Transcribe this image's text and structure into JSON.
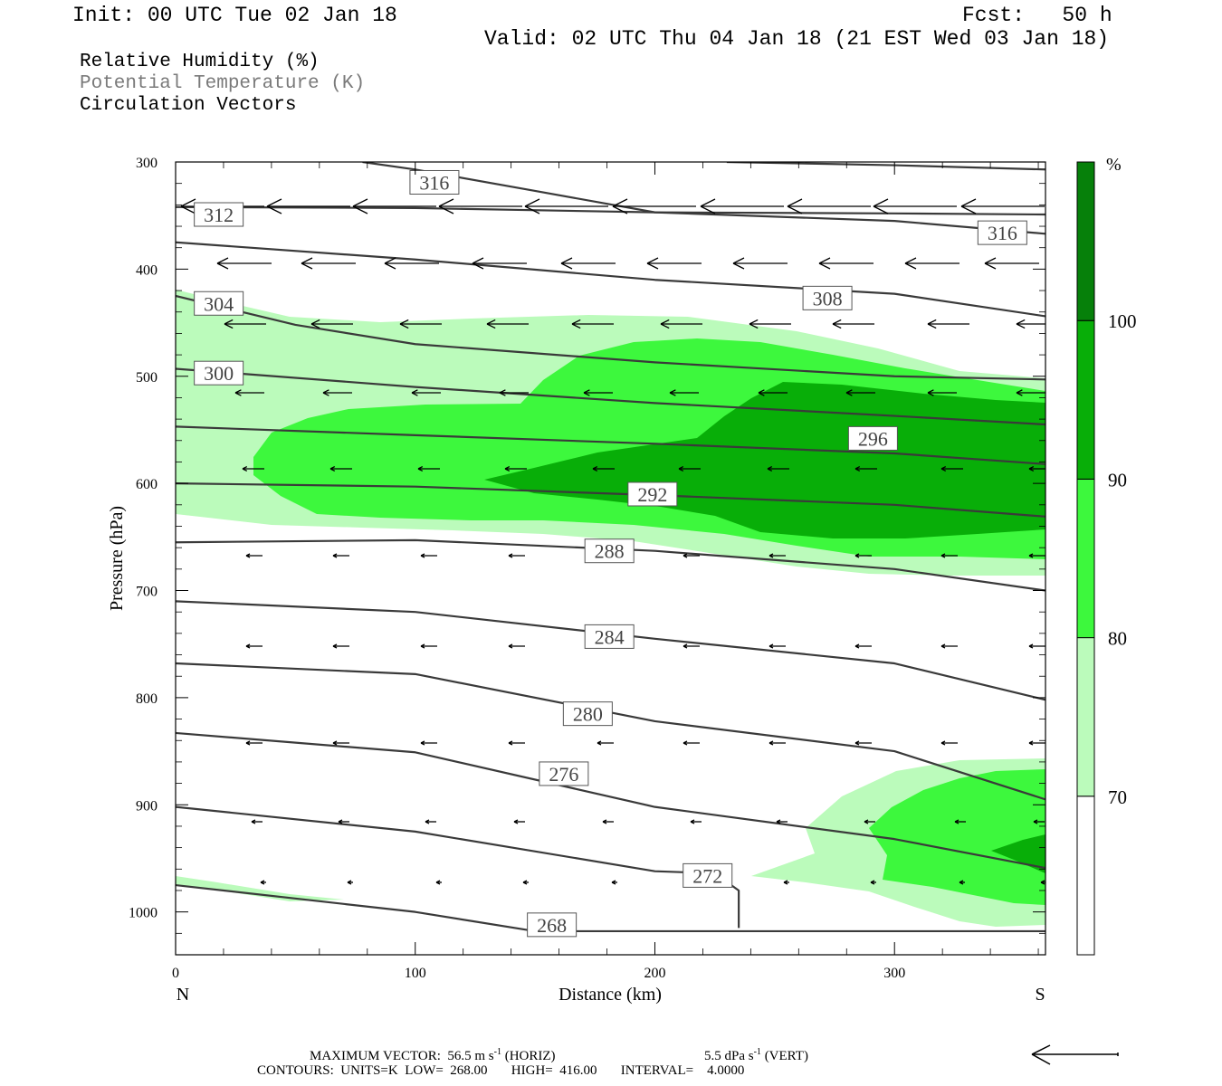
{
  "header": {
    "init": "Init: 00 UTC Tue 02 Jan 18",
    "fcst": "Fcst:   50 h",
    "valid": "Valid: 02 UTC Thu 04 Jan 18 (21 EST Wed 03 Jan 18)"
  },
  "legend_titles": [
    {
      "text": "Relative Humidity (%)",
      "color": "#000000"
    },
    {
      "text": "Potential Temperature (K)",
      "color": "#7a7a7a"
    },
    {
      "text": "Circulation Vectors",
      "color": "#000000"
    }
  ],
  "colorbar": {
    "unit": "%",
    "ticks": [
      "70",
      "80",
      "90",
      "100"
    ],
    "colors": [
      "#ffffff",
      "#bbfbbb",
      "#3df83d",
      "#08ae08",
      "#06800a"
    ]
  },
  "footer": {
    "max_vector": "MAXIMUM VECTOR:  56.5 m s",
    "max_vector_sup": "-1",
    "horiz": "(HORIZ)",
    "vert_val": "5.5 dPa s",
    "vert_sup": "-1",
    "vert": "(VERT)",
    "contours": "CONTOURS:  UNITS=K  LOW=  268.00       HIGH=  416.00       INTERVAL=    4.0000"
  },
  "chart_data": {
    "type": "contour",
    "xlabel": "Distance (km)",
    "ylabel": "Pressure (hPa)",
    "xlim": [
      0,
      363
    ],
    "ylim": [
      1040,
      300
    ],
    "xticks": [
      0,
      100,
      200,
      300
    ],
    "yticks": [
      300,
      400,
      500,
      600,
      700,
      800,
      900,
      1000
    ],
    "x_end_labels": {
      "left": "N",
      "right": "S"
    },
    "rh_levels": [
      70,
      80,
      90,
      100
    ],
    "theta_contours": [
      {
        "label": "316",
        "points": [
          [
            78,
            300
          ],
          [
            100,
            307
          ],
          [
            150,
            327
          ],
          [
            200,
            347
          ],
          [
            300,
            348
          ],
          [
            363,
            349
          ]
        ],
        "label_at": [
          108,
          319
        ]
      },
      {
        "label": "316",
        "points": [
          [
            230,
            300
          ],
          [
            300,
            303
          ],
          [
            363,
            307
          ]
        ],
        "label_at": [
          345,
          366
        ]
      },
      {
        "label": "312",
        "points": [
          [
            0,
            342
          ],
          [
            100,
            343
          ],
          [
            200,
            347
          ],
          [
            300,
            355
          ],
          [
            363,
            367
          ]
        ],
        "label_at": [
          18,
          349
        ]
      },
      {
        "label": "308",
        "points": [
          [
            0,
            375
          ],
          [
            100,
            391
          ],
          [
            200,
            410
          ],
          [
            300,
            423
          ],
          [
            363,
            444
          ]
        ],
        "label_at": [
          272,
          427
        ]
      },
      {
        "label": "304",
        "points": [
          [
            0,
            425
          ],
          [
            50,
            452
          ],
          [
            100,
            470
          ],
          [
            200,
            487
          ],
          [
            300,
            500
          ],
          [
            363,
            503
          ]
        ],
        "label_at": [
          18,
          432
        ]
      },
      {
        "label": "300",
        "points": [
          [
            0,
            493
          ],
          [
            100,
            510
          ],
          [
            200,
            525
          ],
          [
            300,
            537
          ],
          [
            363,
            545
          ]
        ],
        "label_at": [
          18,
          497
        ]
      },
      {
        "label": "296",
        "points": [
          [
            0,
            547
          ],
          [
            100,
            555
          ],
          [
            200,
            563
          ],
          [
            300,
            572
          ],
          [
            363,
            582
          ]
        ],
        "label_at": [
          291,
          558
        ]
      },
      {
        "label": "292",
        "points": [
          [
            0,
            600
          ],
          [
            100,
            603
          ],
          [
            200,
            611
          ],
          [
            300,
            620
          ],
          [
            363,
            631
          ]
        ],
        "label_at": [
          199,
          610
        ]
      },
      {
        "label": "288",
        "points": [
          [
            0,
            655
          ],
          [
            100,
            653
          ],
          [
            200,
            663
          ],
          [
            300,
            680
          ],
          [
            363,
            700
          ]
        ],
        "label_at": [
          181,
          663
        ]
      },
      {
        "label": "284",
        "points": [
          [
            0,
            710
          ],
          [
            100,
            720
          ],
          [
            200,
            745
          ],
          [
            300,
            768
          ],
          [
            363,
            802
          ]
        ],
        "label_at": [
          181,
          743
        ]
      },
      {
        "label": "280",
        "points": [
          [
            0,
            768
          ],
          [
            100,
            778
          ],
          [
            200,
            822
          ],
          [
            300,
            850
          ],
          [
            363,
            895
          ]
        ],
        "label_at": [
          172,
          815
        ]
      },
      {
        "label": "276",
        "points": [
          [
            0,
            833
          ],
          [
            100,
            851
          ],
          [
            200,
            902
          ],
          [
            300,
            932
          ],
          [
            363,
            959
          ]
        ],
        "label_at": [
          162,
          871
        ]
      },
      {
        "label": "272",
        "points": [
          [
            0,
            902
          ],
          [
            100,
            925
          ],
          [
            200,
            962
          ],
          [
            225,
            964
          ],
          [
            235,
            980
          ],
          [
            235,
            1015
          ]
        ],
        "label_at": [
          222,
          966
        ]
      },
      {
        "label": "268",
        "points": [
          [
            0,
            975
          ],
          [
            100,
            1000
          ],
          [
            150,
            1018
          ],
          [
            200,
            1018
          ],
          [
            363,
            1018
          ]
        ],
        "label_at": [
          157,
          1012
        ]
      }
    ]
  }
}
